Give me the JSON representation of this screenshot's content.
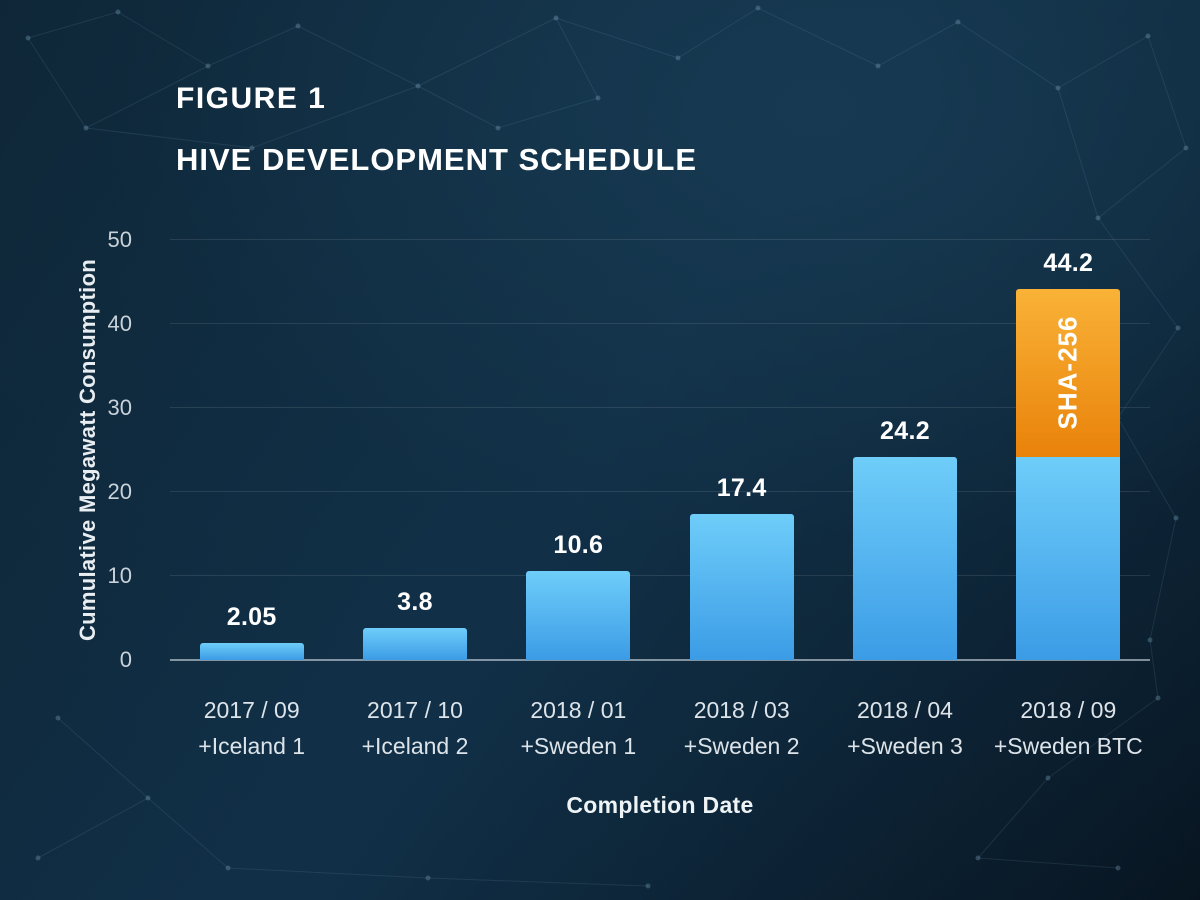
{
  "title": {
    "figure": "FIGURE 1",
    "heading": "HIVE DEVELOPMENT SCHEDULE"
  },
  "chart_data": {
    "type": "bar",
    "stacked": true,
    "title": "HIVE DEVELOPMENT SCHEDULE",
    "xlabel": "Completion Date",
    "ylabel": "Cumulative Megawatt Consumption",
    "ylim": [
      0,
      50
    ],
    "yticks": [
      0,
      10,
      20,
      30,
      40,
      50
    ],
    "grid": true,
    "legend_position": "none",
    "colors": {
      "bar_blue_top": "#6fcdf9",
      "bar_blue_bottom": "#3b9ce6",
      "bar_orange_top": "#f9b237",
      "bar_orange_bottom": "#e9820a"
    },
    "bars": [
      {
        "date": "2017 / 09",
        "site": "+Iceland 1",
        "total": 2.05,
        "label": "2.05"
      },
      {
        "date": "2017 / 10",
        "site": "+Iceland 2",
        "total": 3.8,
        "label": "3.8"
      },
      {
        "date": "2018 / 01",
        "site": "+Sweden 1",
        "total": 10.6,
        "label": "10.6"
      },
      {
        "date": "2018 / 03",
        "site": "+Sweden 2",
        "total": 17.4,
        "label": "17.4"
      },
      {
        "date": "2018 / 04",
        "site": "+Sweden 3",
        "total": 24.2,
        "label": "24.2"
      },
      {
        "date": "2018 / 09",
        "site": "+Sweden BTC",
        "total": 44.2,
        "label": "44.2",
        "segments": [
          {
            "name": "base",
            "value": 24.2,
            "color": "blue"
          },
          {
            "name": "SHA-256",
            "value": 20.0,
            "color": "orange",
            "label": "SHA-256"
          }
        ]
      }
    ]
  }
}
